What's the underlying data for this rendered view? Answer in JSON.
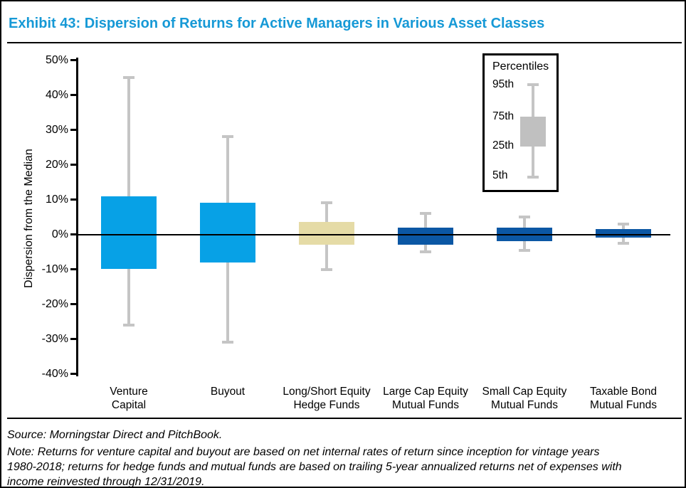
{
  "title": "Exhibit 43: Dispersion of Returns for Active Managers in Various Asset Classes",
  "colors": {
    "title_text": "#1699D6",
    "private_markets_box": "#07A1E6",
    "hedge_fund_box": "#E5DBA6",
    "mutual_fund_box": "#0B57A4",
    "whisker": "#C5C5C5",
    "legend_glyph": "#C0C0C0",
    "axis": "#000000"
  },
  "legend": {
    "title": "Percentiles",
    "labels": [
      "95th",
      "75th",
      "25th",
      "5th"
    ]
  },
  "footer": {
    "source": "Source: Morningstar Direct and PitchBook.",
    "note_lines": [
      "Note: Returns for venture capital and buyout are based on net internal rates of return since inception for vintage years",
      "1980-2018; returns for hedge funds and mutual funds are based on trailing 5-year annualized returns net of expenses with",
      "income reinvested through 12/31/2019."
    ]
  },
  "chart_data": {
    "type": "box",
    "title": "Exhibit 43: Dispersion of Returns for Active Managers in Various Asset Classes",
    "ylabel": "Dispersion from the Median",
    "ylim": [
      -40,
      50
    ],
    "yticks": [
      50,
      40,
      30,
      20,
      10,
      0,
      -10,
      -20,
      -30,
      -40
    ],
    "ytick_format": "percent",
    "grid": false,
    "legend_position": "top-right",
    "percentile_levels": [
      "95th",
      "75th",
      "25th",
      "5th"
    ],
    "categories": [
      "Venture Capital",
      "Buyout",
      "Long/Short Equity Hedge Funds",
      "Large Cap Equity Mutual Funds",
      "Small Cap Equity Mutual Funds",
      "Taxable Bond Mutual Funds"
    ],
    "series": [
      {
        "category": "Venture Capital",
        "label_lines": [
          "Venture",
          "Capital"
        ],
        "p95": 45,
        "p75": 11,
        "p25": -10,
        "p5": -26,
        "color": "#07A1E6"
      },
      {
        "category": "Buyout",
        "label_lines": [
          "Buyout"
        ],
        "p95": 28,
        "p75": 9,
        "p25": -8,
        "p5": -31,
        "color": "#07A1E6"
      },
      {
        "category": "Long/Short Equity Hedge Funds",
        "label_lines": [
          "Long/Short Equity",
          "Hedge Funds"
        ],
        "p95": 9,
        "p75": 3.5,
        "p25": -3,
        "p5": -10,
        "color": "#E5DBA6"
      },
      {
        "category": "Large Cap Equity Mutual Funds",
        "label_lines": [
          "Large Cap Equity",
          "Mutual Funds"
        ],
        "p95": 6,
        "p75": 2,
        "p25": -3,
        "p5": -5,
        "color": "#0B57A4"
      },
      {
        "category": "Small Cap Equity Mutual Funds",
        "label_lines": [
          "Small Cap Equity",
          "Mutual Funds"
        ],
        "p95": 5,
        "p75": 2,
        "p25": -2,
        "p5": -4.5,
        "color": "#0B57A4"
      },
      {
        "category": "Taxable Bond Mutual Funds",
        "label_lines": [
          "Taxable Bond",
          "Mutual Funds"
        ],
        "p95": 3,
        "p75": 1.5,
        "p25": -1,
        "p5": -2.5,
        "color": "#0B57A4"
      }
    ]
  }
}
